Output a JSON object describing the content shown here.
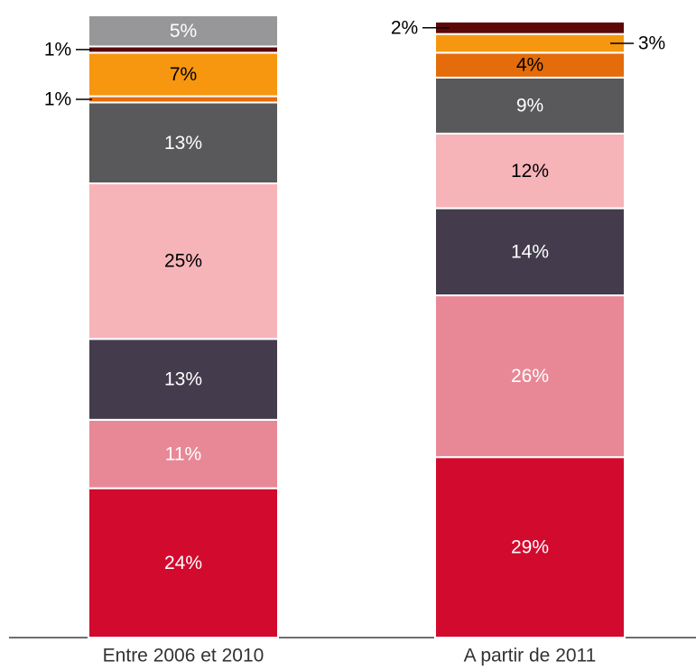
{
  "chart_data": {
    "type": "stacked_bar",
    "categories": [
      "Entre 2006 et 2010",
      "A partir de 2011"
    ],
    "ylim": [
      0,
      100
    ],
    "series": [
      {
        "color": "#d20a2e",
        "label_color": "#ffffff",
        "values": [
          24,
          29
        ],
        "value_labels": [
          "24%",
          "29%"
        ]
      },
      {
        "color": "#e88896",
        "label_color": "#ffffff",
        "values": [
          11,
          26
        ],
        "value_labels": [
          "11%",
          "26%"
        ]
      },
      {
        "color": "#443c4c",
        "label_color": "#ffffff",
        "values": [
          13,
          14
        ],
        "value_labels": [
          "13%",
          "14%"
        ]
      },
      {
        "color": "#f6b4b9",
        "label_color": "#000000",
        "values": [
          25,
          12
        ],
        "value_labels": [
          "25%",
          "12%"
        ]
      },
      {
        "color": "#59595b",
        "label_color": "#ffffff",
        "values": [
          13,
          9
        ],
        "value_labels": [
          "13%",
          "9%"
        ]
      },
      {
        "color": "#e46c0a",
        "label_color": "#000000",
        "values": [
          1,
          4
        ],
        "value_labels": [
          "1%",
          "4%"
        ]
      },
      {
        "color": "#f7970f",
        "label_color": "#000000",
        "values": [
          7,
          3
        ],
        "value_labels": [
          "7%",
          "3%"
        ]
      },
      {
        "color": "#5c0808",
        "label_color": "#ffffff",
        "values": [
          1,
          2
        ],
        "value_labels": [
          "1%",
          "2%"
        ]
      },
      {
        "color": "#97979a",
        "label_color": "#ffffff",
        "values": [
          5,
          null
        ],
        "value_labels": [
          "5%",
          null
        ]
      }
    ]
  }
}
